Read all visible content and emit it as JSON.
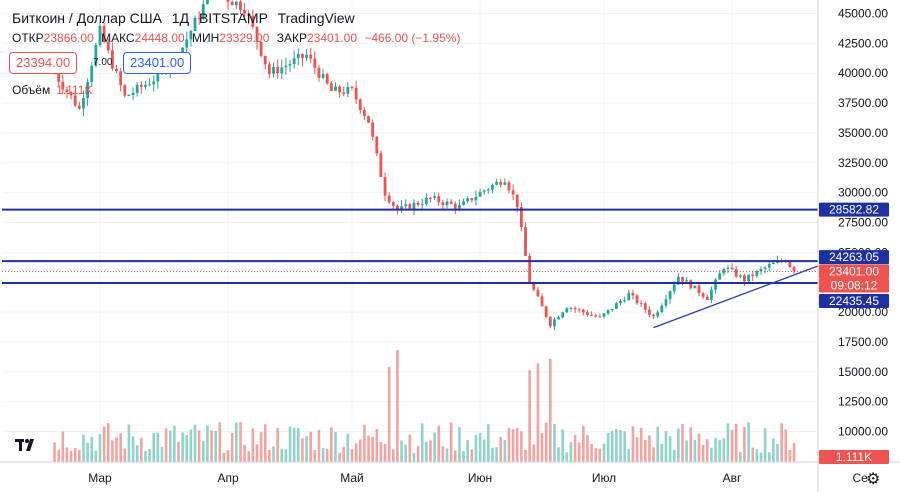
{
  "header": {
    "symbol_title": "Биткоин / Доллар США",
    "interval": "1Д",
    "exchange": "BITSTAMP",
    "provider": "TradingView"
  },
  "ohlc": {
    "open_label": "ОТКР",
    "open": "23866.00",
    "high_label": "МАКС",
    "high": "24448.00",
    "low_label": "МИН",
    "low": "23329.00",
    "close_label": "ЗАКР",
    "close": "23401.00",
    "change": "−466.00 (−1.95%)"
  },
  "trade": {
    "sell_price": "23394.00",
    "spread": "7.00",
    "buy_price": "23401.00"
  },
  "volume": {
    "label": "Объём",
    "value": "1.111K"
  },
  "price_labels": {
    "level1": "28582.82",
    "level2": "24263.05",
    "current": "23401.00",
    "countdown": "09:08:12",
    "level3": "22435.45",
    "volume": "1.111K"
  },
  "colors": {
    "up": "#26a69a",
    "down": "#ef5350",
    "level_line": "#1e2fa0",
    "trend_line": "#2a3bb8",
    "volume_up": "#8fd4cb",
    "volume_down": "#f4a3a1"
  },
  "icons": {
    "logo": "tradingview-logo",
    "settings": "gear-icon"
  },
  "chart_data": {
    "type": "candlestick",
    "title": "Биткоин / Доллар США",
    "x_ticks": [
      "Мар",
      "Апр",
      "Май",
      "Июн",
      "Июл",
      "Авг",
      "Се"
    ],
    "y_ticks": [
      10000,
      12500,
      15000,
      17500,
      20000,
      22500,
      25000,
      27500,
      30000,
      32500,
      35000,
      37500,
      40000,
      42500,
      45000
    ],
    "y_tick_labels": [
      "10000.00",
      "12500.00",
      "15000.00",
      "17500.00",
      "20000.00",
      "22500.00",
      "25000.00",
      "27500.00",
      "30000.00",
      "32500.00",
      "35000.00",
      "37500.00",
      "40000.00",
      "42500.00",
      "45000.00"
    ],
    "ylim": [
      8700,
      45500
    ],
    "horizontal_levels": [
      28582.82,
      24263.05,
      22435.45
    ],
    "current_price": 23401.0,
    "trendline": [
      {
        "date": "2022-07-13",
        "price": 18700
      },
      {
        "date": "2022-08-16",
        "price": 24300
      }
    ],
    "anchors": [
      {
        "date": "2022-02-18",
        "price": 40000
      },
      {
        "date": "2022-02-24",
        "price": 37000
      },
      {
        "date": "2022-03-01",
        "price": 43500
      },
      {
        "date": "2022-03-07",
        "price": 38000
      },
      {
        "date": "2022-03-14",
        "price": 39500
      },
      {
        "date": "2022-03-20",
        "price": 41500
      },
      {
        "date": "2022-03-28",
        "price": 47000
      },
      {
        "date": "2022-04-05",
        "price": 45500
      },
      {
        "date": "2022-04-11",
        "price": 40000
      },
      {
        "date": "2022-04-20",
        "price": 41500
      },
      {
        "date": "2022-04-26",
        "price": 38500
      },
      {
        "date": "2022-05-01",
        "price": 38500
      },
      {
        "date": "2022-05-05",
        "price": 36000
      },
      {
        "date": "2022-05-09",
        "price": 30000
      },
      {
        "date": "2022-05-12",
        "price": 28500
      },
      {
        "date": "2022-05-20",
        "price": 29500
      },
      {
        "date": "2022-05-27",
        "price": 28800
      },
      {
        "date": "2022-06-01",
        "price": 30000
      },
      {
        "date": "2022-06-07",
        "price": 31200
      },
      {
        "date": "2022-06-10",
        "price": 29000
      },
      {
        "date": "2022-06-13",
        "price": 22500
      },
      {
        "date": "2022-06-18",
        "price": 19000
      },
      {
        "date": "2022-06-22",
        "price": 20500
      },
      {
        "date": "2022-06-30",
        "price": 19500
      },
      {
        "date": "2022-07-07",
        "price": 21500
      },
      {
        "date": "2022-07-13",
        "price": 19600
      },
      {
        "date": "2022-07-19",
        "price": 23000
      },
      {
        "date": "2022-07-26",
        "price": 21200
      },
      {
        "date": "2022-07-30",
        "price": 23800
      },
      {
        "date": "2022-08-04",
        "price": 22700
      },
      {
        "date": "2022-08-10",
        "price": 23900
      },
      {
        "date": "2022-08-14",
        "price": 24400
      },
      {
        "date": "2022-08-16",
        "price": 23401
      }
    ],
    "volume_spikes": [
      {
        "date": "2022-05-10",
        "level": 0.85
      },
      {
        "date": "2022-05-12",
        "level": 1.0
      },
      {
        "date": "2022-06-13",
        "level": 0.82
      },
      {
        "date": "2022-06-15",
        "level": 0.88
      },
      {
        "date": "2022-06-18",
        "level": 0.92
      }
    ]
  }
}
